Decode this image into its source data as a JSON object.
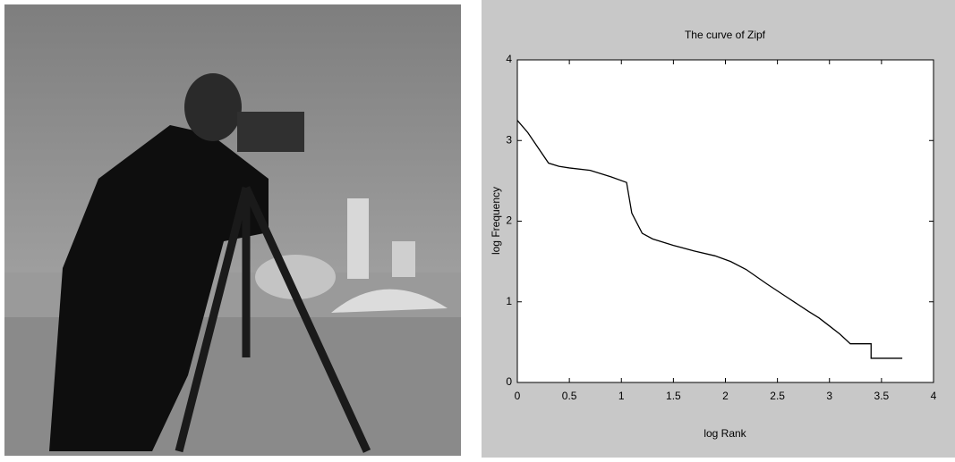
{
  "chart_data": {
    "type": "line",
    "title": "The curve of Zipf",
    "xlabel": "log Rank",
    "ylabel": "log Frequency",
    "x": [
      0,
      0.1,
      0.3,
      0.4,
      0.5,
      0.7,
      0.9,
      1.05,
      1.1,
      1.2,
      1.3,
      1.5,
      1.7,
      1.9,
      2.05,
      2.2,
      2.4,
      2.6,
      2.8,
      2.9,
      3.0,
      3.1,
      3.2,
      3.4,
      3.4,
      3.7
    ],
    "values": [
      3.25,
      3.1,
      2.72,
      2.68,
      2.66,
      2.63,
      2.55,
      2.48,
      2.1,
      1.85,
      1.78,
      1.7,
      1.63,
      1.57,
      1.5,
      1.4,
      1.22,
      1.05,
      0.88,
      0.8,
      0.7,
      0.6,
      0.48,
      0.48,
      0.3,
      0.3
    ],
    "color": "#000000",
    "xlim": [
      0,
      4
    ],
    "xticks": [
      0,
      0.5,
      1,
      1.5,
      2,
      2.5,
      3,
      3.5,
      4
    ],
    "ylim": [
      0,
      4
    ],
    "yticks": [
      0,
      1,
      2,
      3,
      4
    ]
  }
}
